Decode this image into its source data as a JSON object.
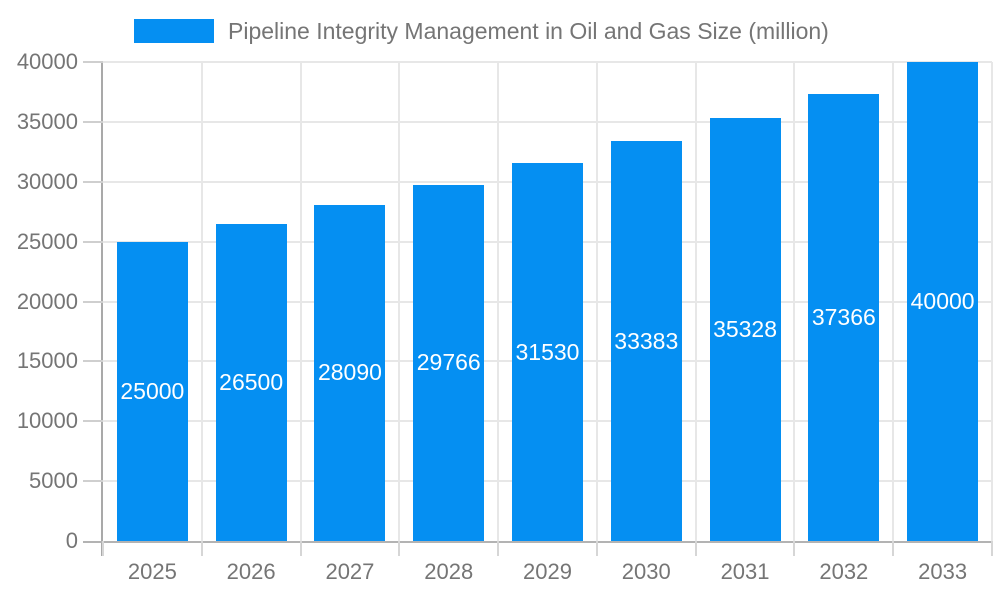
{
  "legend": {
    "swatch_color": "#058ff2"
  },
  "chart_data": {
    "type": "bar",
    "title": "Pipeline Integrity Management in Oil and Gas Size (million)",
    "series_name": "Pipeline Integrity Management in Oil and Gas Size (million)",
    "categories": [
      "2025",
      "2026",
      "2027",
      "2028",
      "2029",
      "2030",
      "2031",
      "2032",
      "2033"
    ],
    "values": [
      25000,
      26500,
      28090,
      29766,
      31530,
      33383,
      35328,
      37366,
      40000
    ],
    "value_labels": [
      "25000",
      "26500",
      "28090",
      "29766",
      "31530",
      "33383",
      "35328",
      "37366",
      "40000"
    ],
    "xlabel": "",
    "ylabel": "",
    "ylim": [
      0,
      40000
    ],
    "ytick_step": 5000,
    "ytick_labels": [
      "0",
      "5000",
      "10000",
      "15000",
      "20000",
      "25000",
      "30000",
      "35000",
      "40000"
    ],
    "grid": true,
    "legend_position": "top",
    "bar_color": "#058ff2",
    "bar_label_color": "#ffffff",
    "axis_text_color": "#757575",
    "grid_color": "#e7e7e7",
    "axis_line_color": "#adadad"
  }
}
